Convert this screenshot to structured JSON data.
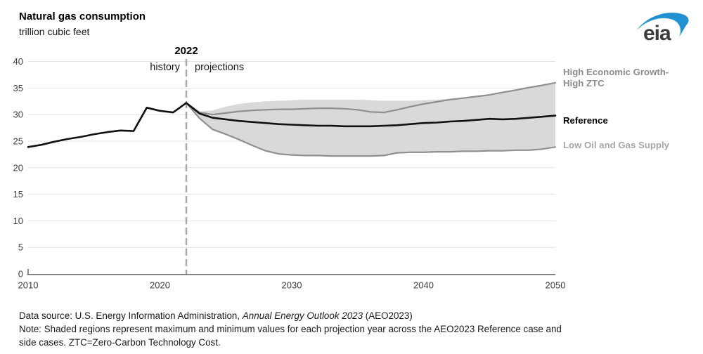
{
  "header": {
    "title": "Natural gas consumption",
    "subtitle": "trillion cubic feet",
    "logo_text": "eia"
  },
  "annotations": {
    "divider_year_label": "2022",
    "history": "history",
    "projections": "projections"
  },
  "series_labels": {
    "high_line1": "High Economic Growth-",
    "high_line2": "High ZTC",
    "reference": "Reference",
    "low": "Low Oil and Gas Supply"
  },
  "footer": {
    "source_prefix": "Data source: U.S. Energy Information Administration, ",
    "source_italic": "Annual Energy Outlook 2023",
    "source_suffix": " (AEO2023)",
    "note_line1": "Note: Shaded regions represent maximum and minimum values for each projection year across the AEO2023 Reference case and",
    "note_line2": "side cases. ZTC=Zero-Carbon Technology Cost."
  },
  "colors": {
    "reference_line": "#111111",
    "scenario_line": "#8f8f8f",
    "band_fill": "#d9d9d9",
    "grid": "#e3e3e3",
    "axis": "#6b6b6b",
    "divider": "#a6a6a6",
    "tick_text": "#3d3d3d",
    "logo_blue": "#2191d1",
    "logo_text": "#3d3d3d"
  },
  "chart_data": {
    "type": "line",
    "title": "Natural gas consumption",
    "ylabel": "trillion cubic feet",
    "xlim": [
      2010,
      2050
    ],
    "ylim": [
      0,
      40
    ],
    "x_ticks": [
      2010,
      2020,
      2030,
      2040,
      2050
    ],
    "y_ticks": [
      0,
      5,
      10,
      15,
      20,
      25,
      30,
      35,
      40
    ],
    "grid": true,
    "legend_position": "right-edge-labels",
    "divider_year": 2022,
    "history": {
      "name": "Reference (history)",
      "years": [
        2010,
        2011,
        2012,
        2013,
        2014,
        2015,
        2016,
        2017,
        2018,
        2019,
        2020,
        2021,
        2022
      ],
      "values": [
        23.9,
        24.3,
        24.9,
        25.4,
        25.8,
        26.3,
        26.7,
        27.0,
        26.9,
        31.3,
        30.7,
        30.4,
        32.2
      ]
    },
    "projections": {
      "years": [
        2022,
        2023,
        2024,
        2025,
        2026,
        2027,
        2028,
        2029,
        2030,
        2031,
        2032,
        2033,
        2034,
        2035,
        2036,
        2037,
        2038,
        2039,
        2040,
        2041,
        2042,
        2043,
        2044,
        2045,
        2046,
        2047,
        2048,
        2049,
        2050
      ],
      "series": [
        {
          "name": "Reference",
          "role": "reference",
          "values": [
            32.2,
            30.2,
            29.4,
            29.1,
            28.8,
            28.6,
            28.4,
            28.2,
            28.1,
            28.0,
            27.9,
            27.9,
            27.8,
            27.8,
            27.8,
            27.9,
            28.0,
            28.2,
            28.4,
            28.5,
            28.7,
            28.8,
            29.0,
            29.2,
            29.1,
            29.2,
            29.4,
            29.6,
            29.8
          ]
        },
        {
          "name": "High Economic Growth-High ZTC",
          "role": "scenario",
          "values": [
            32.2,
            30.4,
            30.0,
            30.3,
            30.6,
            30.8,
            30.9,
            31.0,
            31.0,
            31.1,
            31.2,
            31.2,
            31.1,
            30.9,
            30.5,
            30.4,
            30.9,
            31.5,
            32.0,
            32.4,
            32.8,
            33.1,
            33.4,
            33.7,
            34.2,
            34.6,
            35.1,
            35.5,
            36.0
          ]
        },
        {
          "name": "Low Oil and Gas Supply",
          "role": "scenario",
          "values": [
            32.2,
            29.3,
            27.2,
            26.3,
            25.3,
            24.2,
            23.2,
            22.6,
            22.4,
            22.3,
            22.3,
            22.2,
            22.2,
            22.2,
            22.2,
            22.3,
            22.8,
            22.9,
            22.9,
            23.0,
            23.0,
            23.1,
            23.1,
            23.2,
            23.2,
            23.3,
            23.3,
            23.5,
            23.9
          ]
        }
      ],
      "band": {
        "description": "min-max envelope across AEO2023 Reference and side cases",
        "max": [
          32.2,
          30.6,
          30.8,
          31.5,
          32.0,
          32.3,
          32.5,
          32.6,
          32.7,
          32.8,
          32.8,
          32.8,
          32.8,
          32.8,
          32.7,
          32.6,
          32.6,
          32.6,
          32.7,
          32.8,
          33.0,
          33.2,
          33.5,
          33.8,
          34.2,
          34.6,
          35.1,
          35.5,
          36.0
        ],
        "min": [
          32.2,
          29.3,
          27.2,
          26.3,
          25.3,
          24.2,
          23.2,
          22.6,
          22.4,
          22.3,
          22.3,
          22.2,
          22.2,
          22.2,
          22.2,
          22.3,
          22.8,
          22.9,
          22.9,
          23.0,
          23.0,
          23.1,
          23.1,
          23.2,
          23.2,
          23.3,
          23.3,
          23.5,
          23.9
        ]
      }
    }
  }
}
